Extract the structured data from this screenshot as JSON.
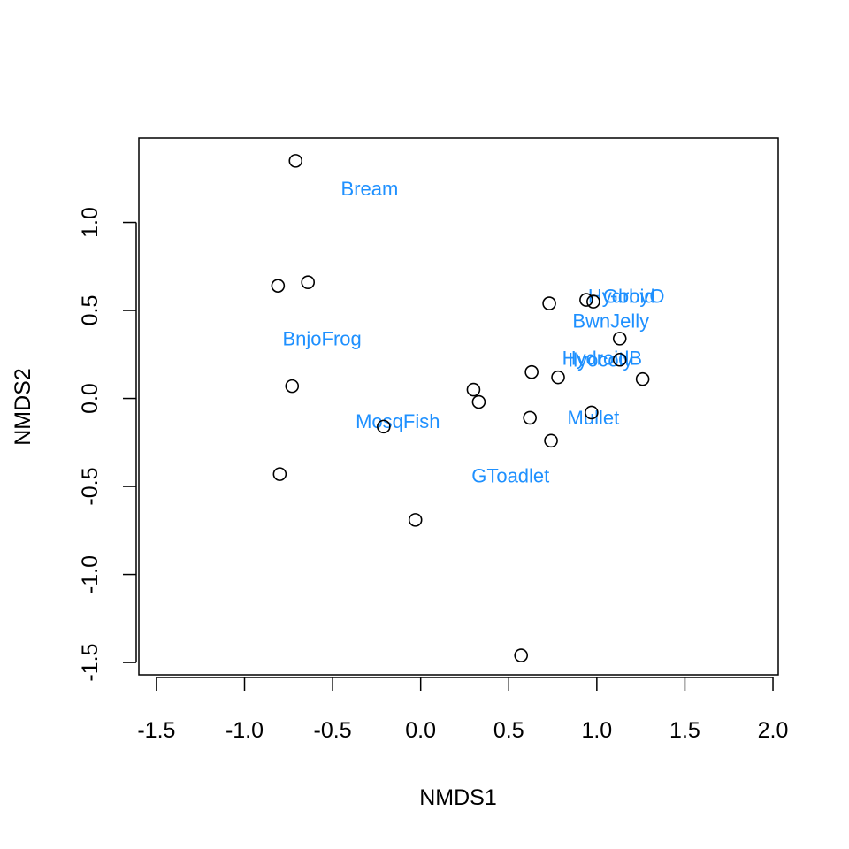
{
  "chart_data": {
    "type": "scatter",
    "title": "",
    "xlabel": "NMDS1",
    "ylabel": "NMDS2",
    "xlim": [
      -1.6,
      2.03
    ],
    "ylim": [
      -1.57,
      1.48
    ],
    "x_ticks": [
      -1.5,
      -1.0,
      -0.5,
      0.0,
      0.5,
      1.0,
      1.5,
      2.0
    ],
    "x_tick_labels": [
      "-1.5",
      "-1.0",
      "-0.5",
      "0.0",
      "0.5",
      "1.0",
      "1.5",
      "2.0"
    ],
    "y_ticks": [
      -1.5,
      -1.0,
      -0.5,
      0.0,
      0.5,
      1.0
    ],
    "y_tick_labels": [
      "-1.5",
      "-1.0",
      "-0.5",
      "0.0",
      "0.5",
      "1.0"
    ],
    "grid": false,
    "point_color": "#000000",
    "label_color": "#1E90FF",
    "sites": [
      {
        "x": -0.71,
        "y": 1.35
      },
      {
        "x": -0.81,
        "y": 0.64
      },
      {
        "x": -0.64,
        "y": 0.66
      },
      {
        "x": -0.73,
        "y": 0.07
      },
      {
        "x": -0.8,
        "y": -0.43
      },
      {
        "x": -0.21,
        "y": -0.16
      },
      {
        "x": -0.03,
        "y": -0.69
      },
      {
        "x": 0.3,
        "y": 0.05
      },
      {
        "x": 0.33,
        "y": -0.02
      },
      {
        "x": 0.57,
        "y": -1.46
      },
      {
        "x": 0.62,
        "y": -0.11
      },
      {
        "x": 0.63,
        "y": 0.15
      },
      {
        "x": 0.73,
        "y": 0.54
      },
      {
        "x": 0.74,
        "y": -0.24
      },
      {
        "x": 0.78,
        "y": 0.12
      },
      {
        "x": 0.94,
        "y": 0.56
      },
      {
        "x": 0.98,
        "y": 0.55
      },
      {
        "x": 0.97,
        "y": -0.08
      },
      {
        "x": 1.13,
        "y": 0.34
      },
      {
        "x": 1.13,
        "y": 0.22
      },
      {
        "x": 1.26,
        "y": 0.11
      }
    ],
    "species": [
      {
        "label": "Bream",
        "x": -0.29,
        "y": 1.19
      },
      {
        "label": "BnjoFrog",
        "x": -0.56,
        "y": 0.34
      },
      {
        "label": "MosqFish",
        "x": -0.13,
        "y": -0.13
      },
      {
        "label": "GToadlet",
        "x": 0.51,
        "y": -0.44
      },
      {
        "label": "Mullet",
        "x": 0.98,
        "y": -0.11
      },
      {
        "label": "HydroidB",
        "x": 1.03,
        "y": 0.23
      },
      {
        "label": "Hydroid",
        "x": 1.14,
        "y": 0.58
      },
      {
        "label": "GobyO",
        "x": 1.21,
        "y": 0.58
      },
      {
        "label": "BwnJelly",
        "x": 1.08,
        "y": 0.44
      },
      {
        "label": "Ilyocoly",
        "x": 1.02,
        "y": 0.22
      }
    ]
  }
}
